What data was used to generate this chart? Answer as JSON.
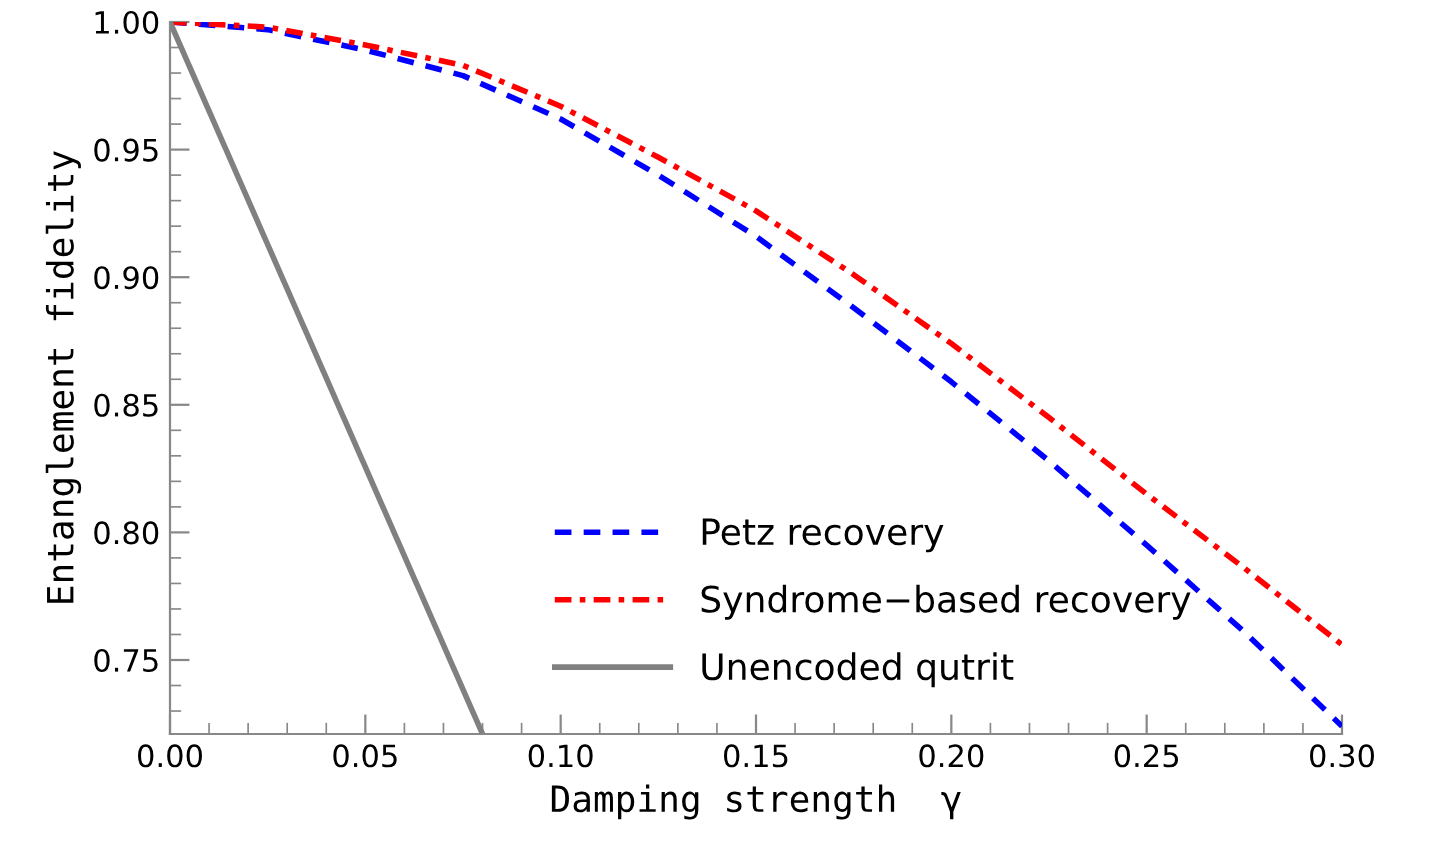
{
  "chart_data": {
    "type": "line",
    "xlabel": "Damping strength  γ",
    "ylabel": "Entanglement fidelity",
    "xlim": [
      0,
      0.3
    ],
    "ylim": [
      0.721,
      1.0
    ],
    "xticks": [
      {
        "value": 0,
        "label": "0.00"
      },
      {
        "value": 0.05,
        "label": "0.05"
      },
      {
        "value": 0.1,
        "label": "0.10"
      },
      {
        "value": 0.15,
        "label": "0.15"
      },
      {
        "value": 0.2,
        "label": "0.20"
      },
      {
        "value": 0.25,
        "label": "0.25"
      },
      {
        "value": 0.3,
        "label": "0.30"
      }
    ],
    "yticks": [
      {
        "value": 0.75,
        "label": "0.75"
      },
      {
        "value": 0.8,
        "label": "0.80"
      },
      {
        "value": 0.85,
        "label": "0.85"
      },
      {
        "value": 0.9,
        "label": "0.90"
      },
      {
        "value": 0.95,
        "label": "0.95"
      },
      {
        "value": 1.0,
        "label": "1.00"
      }
    ],
    "grid": false,
    "legend": "bottom",
    "marker": "none",
    "series": [
      {
        "name": "Petz recovery",
        "color": "#0000ff",
        "line_style": "dashed",
        "x": [
          0,
          0.025,
          0.05,
          0.075,
          0.1,
          0.125,
          0.15,
          0.175,
          0.2,
          0.225,
          0.25,
          0.275,
          0.3
        ],
        "values": [
          1.0,
          0.997,
          0.989,
          0.979,
          0.962,
          0.94,
          0.916,
          0.888,
          0.859,
          0.828,
          0.795,
          0.761,
          0.724
        ]
      },
      {
        "name": "Syndrome−based recovery",
        "color": "#ff0000",
        "line_style": "dashdot",
        "x": [
          0,
          0.025,
          0.05,
          0.075,
          0.1,
          0.125,
          0.15,
          0.175,
          0.2,
          0.225,
          0.25,
          0.275,
          0.3
        ],
        "values": [
          1.0,
          0.998,
          0.991,
          0.983,
          0.967,
          0.947,
          0.926,
          0.901,
          0.874,
          0.845,
          0.815,
          0.786,
          0.756
        ]
      },
      {
        "name": "Unencoded qutrit",
        "color": "#808080",
        "line_style": "solid",
        "x": [
          0,
          0.08
        ],
        "values": [
          1.0,
          0.721
        ]
      }
    ]
  }
}
